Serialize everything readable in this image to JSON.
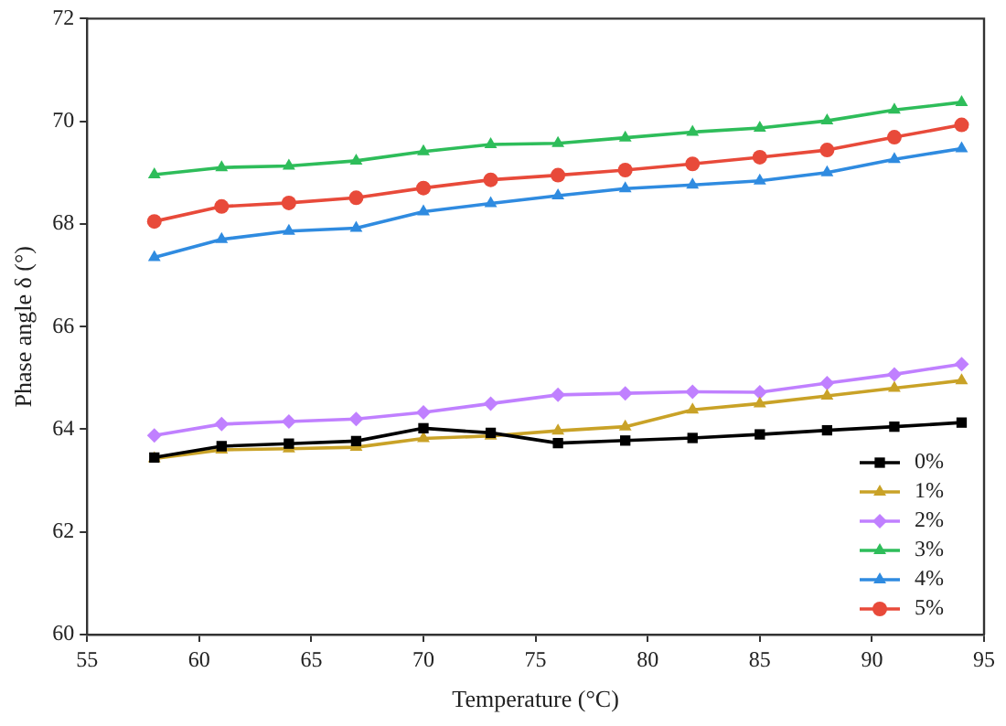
{
  "chart_data": {
    "type": "line",
    "xlabel": "Temperature (°C)",
    "ylabel": "Phase angle δ (°)",
    "x": [
      58,
      61,
      64,
      67,
      70,
      73,
      76,
      79,
      82,
      85,
      88,
      91,
      94
    ],
    "xlim": [
      55,
      95
    ],
    "xticks": [
      55,
      60,
      65,
      70,
      75,
      80,
      85,
      90,
      95
    ],
    "ylim": [
      60,
      72
    ],
    "yticks": [
      60,
      62,
      64,
      66,
      68,
      70,
      72
    ],
    "grid": false,
    "legend": "bottom right",
    "line_style": "solid",
    "series": [
      {
        "name": "0%",
        "color": "#000000",
        "marker": "square",
        "values": [
          63.45,
          63.67,
          63.72,
          63.77,
          64.02,
          63.93,
          63.73,
          63.78,
          63.83,
          63.9,
          63.98,
          64.05,
          64.13
        ]
      },
      {
        "name": "1%",
        "color": "#c9a227",
        "marker": "triangle",
        "values": [
          63.43,
          63.6,
          63.62,
          63.65,
          63.82,
          63.87,
          63.97,
          64.05,
          64.38,
          64.5,
          64.65,
          64.8,
          64.95
        ]
      },
      {
        "name": "2%",
        "color": "#c080ff",
        "marker": "diamond",
        "values": [
          63.88,
          64.1,
          64.15,
          64.2,
          64.33,
          64.5,
          64.67,
          64.7,
          64.73,
          64.72,
          64.9,
          65.07,
          65.27
        ]
      },
      {
        "name": "3%",
        "color": "#2ebd5a",
        "marker": "triangle",
        "values": [
          68.96,
          69.1,
          69.13,
          69.23,
          69.41,
          69.55,
          69.57,
          69.68,
          69.79,
          69.87,
          70.01,
          70.22,
          70.37
        ]
      },
      {
        "name": "4%",
        "color": "#2f8be0",
        "marker": "triangle",
        "values": [
          67.35,
          67.7,
          67.86,
          67.92,
          68.24,
          68.4,
          68.55,
          68.69,
          68.76,
          68.84,
          69.0,
          69.26,
          69.47
        ]
      },
      {
        "name": "5%",
        "color": "#e84a3a",
        "marker": "circle",
        "values": [
          68.05,
          68.34,
          68.41,
          68.51,
          68.7,
          68.86,
          68.95,
          69.05,
          69.17,
          69.3,
          69.44,
          69.69,
          69.93
        ]
      }
    ]
  }
}
